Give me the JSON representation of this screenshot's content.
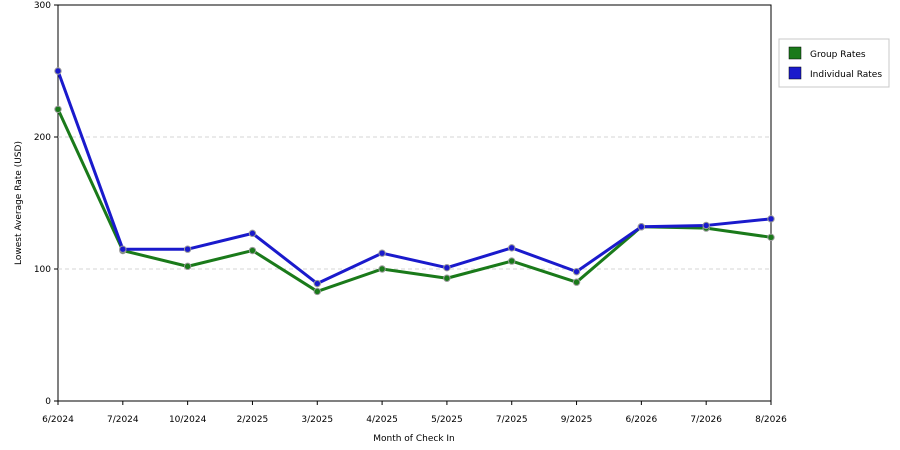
{
  "chart_data": {
    "type": "line",
    "title": "",
    "xlabel": "Month of Check In",
    "ylabel": "Lowest Average Rate (USD)",
    "categories": [
      "6/2024",
      "7/2024",
      "10/2024",
      "2/2025",
      "3/2025",
      "4/2025",
      "5/2025",
      "7/2025",
      "9/2025",
      "6/2026",
      "7/2026",
      "8/2026"
    ],
    "ylim": [
      0,
      300
    ],
    "yticks": [
      0,
      100,
      200,
      300
    ],
    "grid": true,
    "legend_position": "right",
    "series": [
      {
        "name": "Group Rates",
        "color": "#1a7a1a",
        "values": [
          221,
          114,
          102,
          114,
          83,
          100,
          93,
          106,
          90,
          132,
          131,
          124
        ]
      },
      {
        "name": "Individual Rates",
        "color": "#1a1acc",
        "values": [
          250,
          115,
          115,
          127,
          89,
          112,
          101,
          116,
          98,
          132,
          133,
          138
        ]
      }
    ]
  }
}
